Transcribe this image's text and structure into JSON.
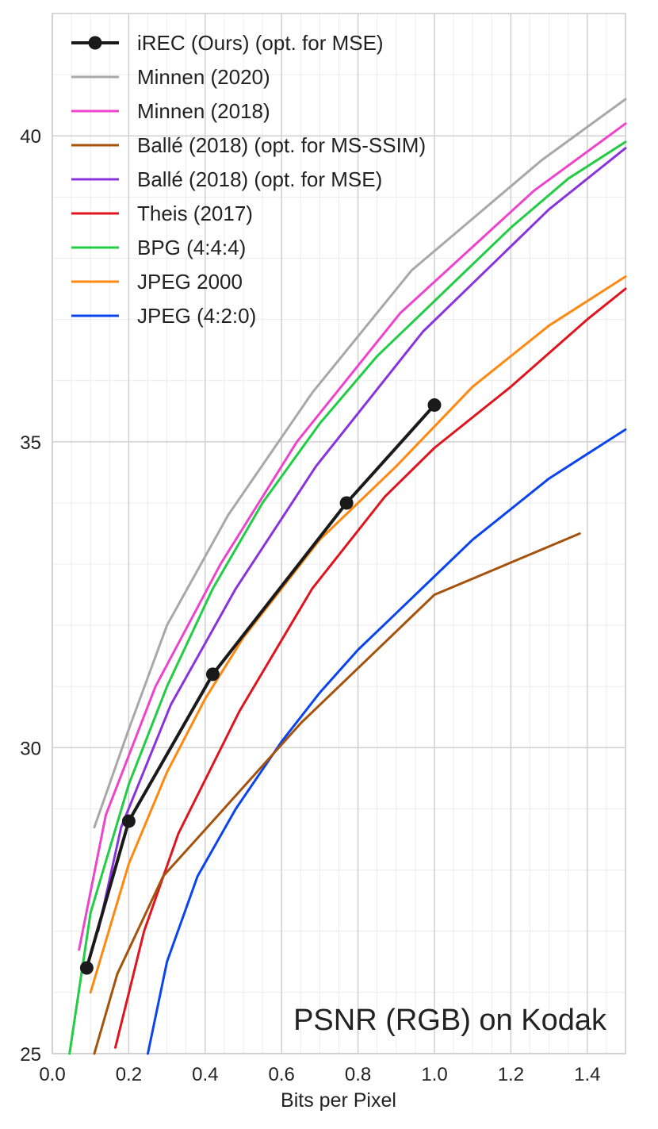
{
  "chart_data": {
    "type": "line",
    "xlabel": "Bits per Pixel",
    "ylabel": "",
    "xlim": [
      0.0,
      1.5
    ],
    "ylim": [
      25,
      42
    ],
    "xticks": [
      "0.0",
      "0.2",
      "0.4",
      "0.6",
      "0.8",
      "1.0",
      "1.2",
      "1.4"
    ],
    "yticks": [
      "25",
      "30",
      "35",
      "40"
    ],
    "grid": true,
    "legend_position": "top-left",
    "annotation": "PSNR (RGB) on Kodak",
    "series": [
      {
        "name": "iREC (Ours) (opt. for MSE)",
        "color": "#1a1a1a",
        "markers": true,
        "width": 4,
        "x": [
          0.09,
          0.2,
          0.42,
          0.77,
          1.0
        ],
        "y": [
          26.4,
          28.8,
          31.2,
          34.0,
          35.6
        ]
      },
      {
        "name": "Minnen (2020)",
        "color": "#a8a8a8",
        "width": 3,
        "x": [
          0.11,
          0.2,
          0.3,
          0.46,
          0.68,
          0.94,
          1.28,
          1.5
        ],
        "y": [
          28.7,
          30.3,
          32.0,
          33.8,
          35.8,
          37.8,
          39.6,
          40.6
        ]
      },
      {
        "name": "Minnen (2018)",
        "color": "#ee44cc",
        "width": 3,
        "x": [
          0.07,
          0.14,
          0.27,
          0.44,
          0.64,
          0.91,
          1.26,
          1.5
        ],
        "y": [
          26.7,
          28.9,
          31.0,
          33.0,
          35.0,
          37.1,
          39.1,
          40.2
        ]
      },
      {
        "name": "Ballé (2018) (opt. for MS-SSIM)",
        "color": "#a4520c",
        "width": 3,
        "x": [
          0.11,
          0.17,
          0.29,
          0.42,
          0.65,
          1.0,
          1.38
        ],
        "y": [
          25.0,
          26.3,
          27.9,
          28.8,
          30.4,
          32.5,
          33.5
        ]
      },
      {
        "name": "Ballé (2018) (opt. for MSE)",
        "color": "#8833dd",
        "width": 3,
        "x": [
          0.12,
          0.18,
          0.31,
          0.48,
          0.69,
          0.97,
          1.3,
          1.5
        ],
        "y": [
          27.0,
          28.7,
          30.7,
          32.6,
          34.6,
          36.8,
          38.8,
          39.8
        ]
      },
      {
        "name": "Theis (2017)",
        "color": "#e0141e",
        "width": 3,
        "x": [
          0.165,
          0.24,
          0.33,
          0.49,
          0.68,
          0.87,
          1.0,
          1.2,
          1.4,
          1.5
        ],
        "y": [
          25.1,
          27.0,
          28.6,
          30.6,
          32.6,
          34.1,
          34.9,
          35.9,
          37.0,
          37.5
        ]
      },
      {
        "name": "BPG (4:4:4)",
        "color": "#22cc44",
        "width": 3,
        "x": [
          0.045,
          0.1,
          0.2,
          0.3,
          0.42,
          0.55,
          0.7,
          0.85,
          1.0,
          1.2,
          1.35,
          1.5
        ],
        "y": [
          25.0,
          27.3,
          29.4,
          31.0,
          32.6,
          34.0,
          35.3,
          36.4,
          37.3,
          38.5,
          39.3,
          39.9
        ]
      },
      {
        "name": "JPEG 2000",
        "color": "#ff8811",
        "width": 3,
        "x": [
          0.1,
          0.2,
          0.3,
          0.4,
          0.5,
          0.7,
          0.9,
          1.1,
          1.3,
          1.5
        ],
        "y": [
          26.0,
          28.1,
          29.6,
          30.8,
          31.8,
          33.4,
          34.6,
          35.9,
          36.9,
          37.7
        ]
      },
      {
        "name": "JPEG (4:2:0)",
        "color": "#0a44ee",
        "width": 3,
        "x": [
          0.25,
          0.3,
          0.38,
          0.48,
          0.6,
          0.7,
          0.8,
          0.9,
          1.0,
          1.1,
          1.2,
          1.3,
          1.4,
          1.5
        ],
        "y": [
          25.0,
          26.5,
          27.9,
          29.0,
          30.1,
          30.9,
          31.6,
          32.2,
          32.8,
          33.4,
          33.9,
          34.4,
          34.8,
          35.2
        ]
      }
    ]
  }
}
